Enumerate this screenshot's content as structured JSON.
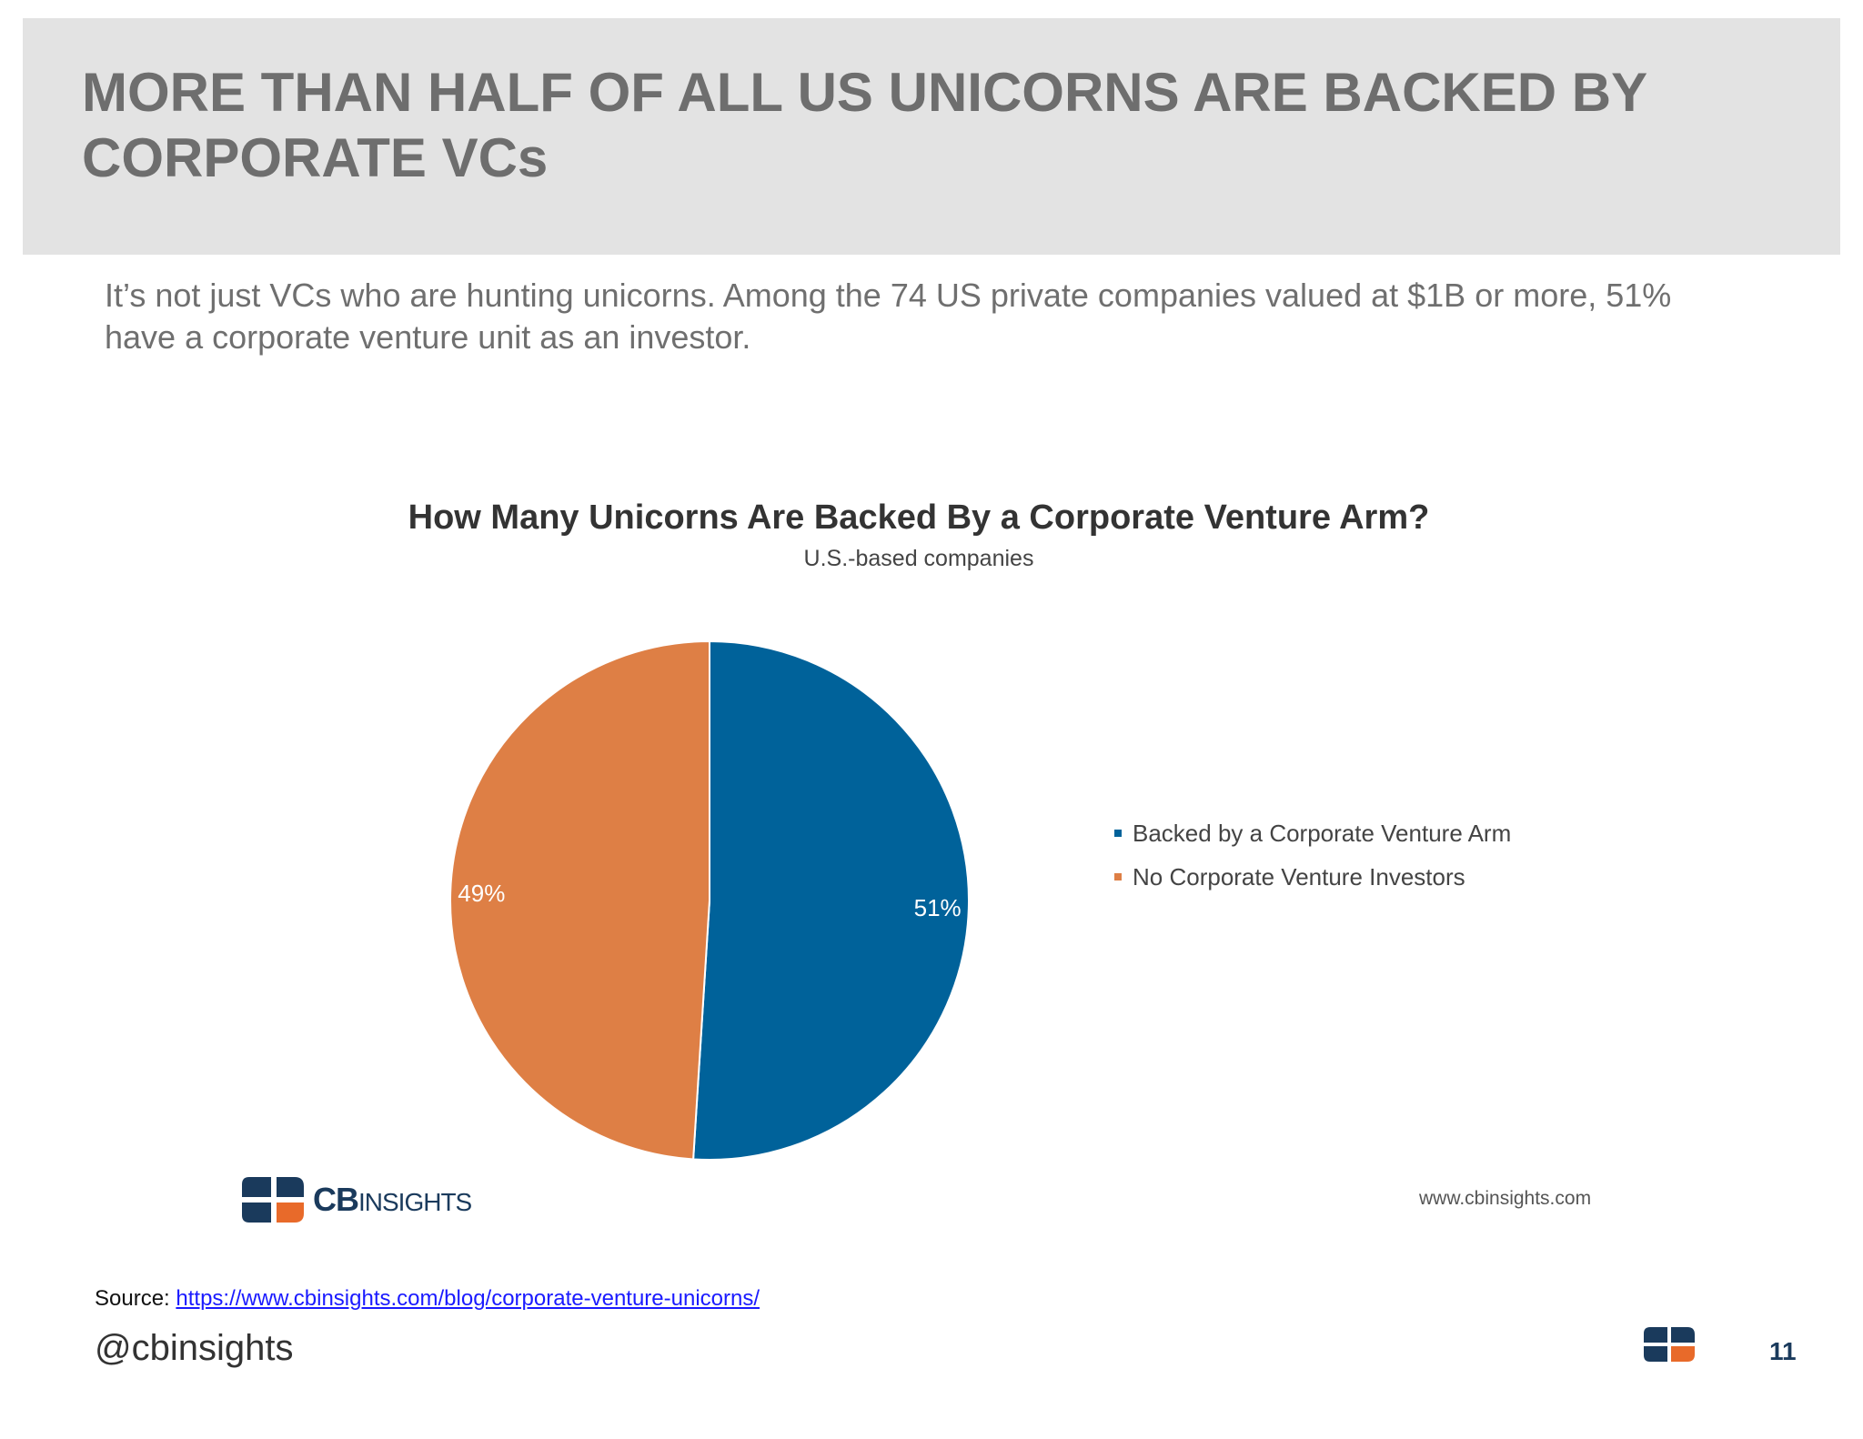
{
  "slide": {
    "title": "MORE THAN HALF OF ALL US UNICORNS ARE BACKED BY CORPORATE VCs",
    "lead": "It’s not just VCs who are hunting unicorns. Among the 74 US private companies valued at $1B or more, 51% have a corporate venture unit as an investor.",
    "source_label": "Source:",
    "source_url": "https://www.cbinsights.com/blog/corporate-venture-unicorns/",
    "handle": "@cbinsights",
    "page_number": "11"
  },
  "chart_data": {
    "type": "pie",
    "title": "How Many Unicorns Are Backed By a Corporate Venture Arm?",
    "subtitle": "U.S.-based companies",
    "categories": [
      "Backed by a Corporate Venture Arm",
      "No Corporate Venture Investors"
    ],
    "values": [
      51,
      49
    ],
    "labels": [
      "51%",
      "49%"
    ],
    "colors": [
      "#00629a",
      "#de7f45"
    ],
    "legend_position": "right",
    "footer_logo_text_bold": "CB",
    "footer_logo_text": "INSIGHTS",
    "footer_url": "www.cbinsights.com"
  },
  "icons": {
    "cb_logo": "cb-insights-logo-icon",
    "footer_mark": "cb-insights-mark-icon"
  }
}
